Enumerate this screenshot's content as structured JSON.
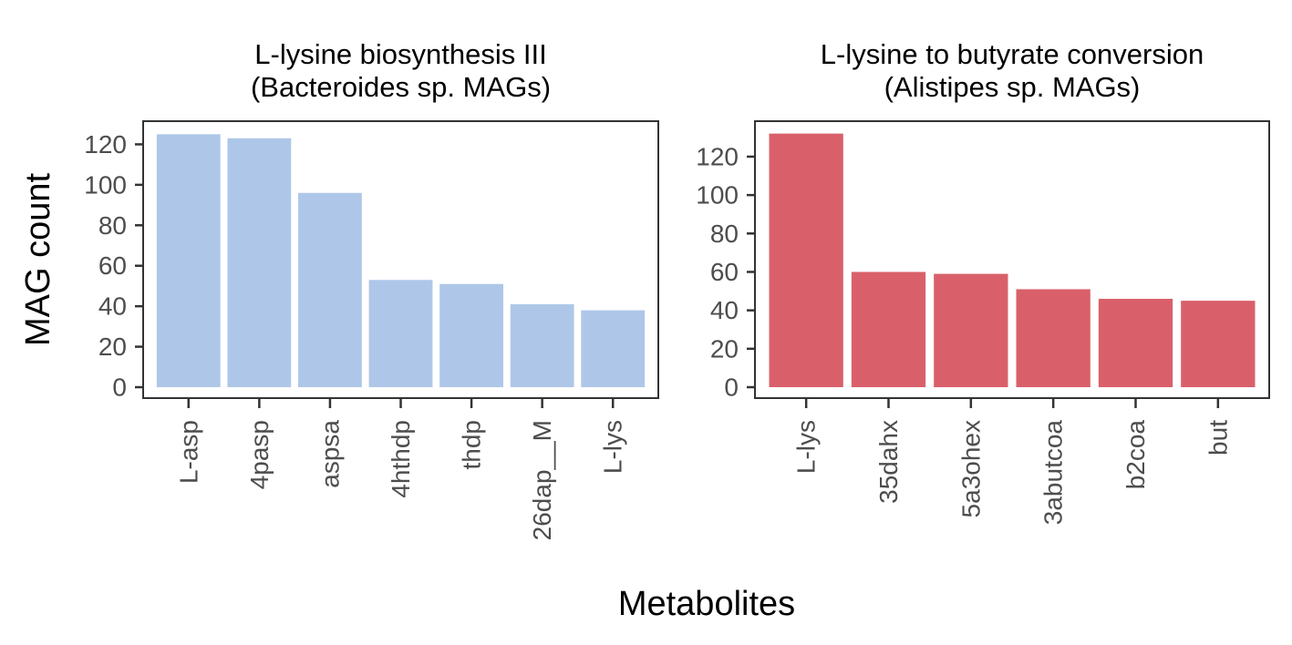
{
  "figure": {
    "ylabel": "MAG count",
    "xlabel": "Metabolites"
  },
  "chart_data": [
    {
      "type": "bar",
      "title": [
        "L-lysine biosynthesis III",
        "(Bacteroides sp. MAGs)"
      ],
      "categories": [
        "L-asp",
        "4pasp",
        "aspsa",
        "4hthdp",
        "thdp",
        "26dap__M",
        "L-lys"
      ],
      "values": [
        125,
        123,
        96,
        53,
        51,
        41,
        38
      ],
      "color": "#aec7e8",
      "ylim": [
        0,
        131
      ],
      "yticks": [
        0,
        20,
        40,
        60,
        80,
        100,
        120
      ],
      "ylabel": "MAG count",
      "xlabel": "Metabolites",
      "grid": false,
      "legend": false
    },
    {
      "type": "bar",
      "title": [
        "L-lysine to butyrate conversion",
        "(Alistipes sp. MAGs)"
      ],
      "categories": [
        "L-lys",
        "35dahx",
        "5a3ohex",
        "3abutcoa",
        "b2coa",
        "but"
      ],
      "values": [
        132,
        60,
        59,
        51,
        46,
        45
      ],
      "color": "#d9606a",
      "ylim": [
        0,
        138
      ],
      "yticks": [
        0,
        20,
        40,
        60,
        80,
        100,
        120
      ],
      "ylabel": "MAG count",
      "xlabel": "Metabolites",
      "grid": false,
      "legend": false
    }
  ]
}
